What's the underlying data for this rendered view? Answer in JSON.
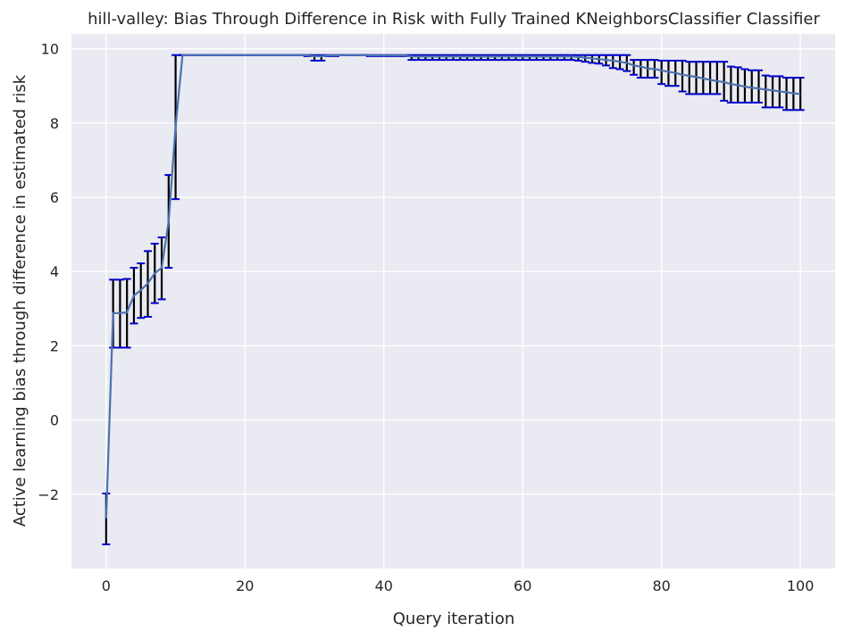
{
  "chart_data": {
    "type": "line",
    "title": "hill-valley: Bias Through Difference in Risk with Fully Trained KNeighborsClassifier Classifier",
    "xlabel": "Query iteration",
    "ylabel": "Active learning bias through difference in estimated risk",
    "xlim": [
      -5,
      105
    ],
    "ylim": [
      -4.0,
      10.4
    ],
    "xticks": [
      0,
      20,
      40,
      60,
      80,
      100
    ],
    "yticks": [
      -2,
      0,
      2,
      4,
      6,
      8,
      10
    ],
    "xtick_labels": [
      "0",
      "20",
      "40",
      "60",
      "80",
      "100"
    ],
    "ytick_labels": [
      "−2",
      "0",
      "2",
      "4",
      "6",
      "8",
      "10"
    ],
    "grid": true,
    "colors": {
      "background": "#eaeaf2",
      "grid": "#ffffff",
      "line": "#4c72b0",
      "errorbar": "#000000",
      "cap": "#0000cc"
    },
    "series": [
      {
        "x": [
          0,
          1,
          2,
          3,
          4,
          5,
          6,
          7,
          8,
          9,
          10,
          11,
          12,
          13,
          14,
          15,
          16,
          17,
          18,
          19,
          20,
          21,
          22,
          23,
          24,
          25,
          26,
          27,
          28,
          29,
          30,
          31,
          32,
          33,
          34,
          35,
          36,
          37,
          38,
          39,
          40,
          41,
          42,
          43,
          44,
          45,
          46,
          47,
          48,
          49,
          50,
          51,
          52,
          53,
          54,
          55,
          56,
          57,
          58,
          59,
          60,
          61,
          62,
          63,
          64,
          65,
          66,
          67,
          68,
          69,
          70,
          71,
          72,
          73,
          74,
          75,
          76,
          77,
          78,
          79,
          80,
          81,
          82,
          83,
          84,
          85,
          86,
          87,
          88,
          89,
          90,
          91,
          92,
          93,
          94,
          95,
          96,
          97,
          98,
          99,
          100
        ],
        "y": [
          -2.65,
          2.88,
          2.88,
          2.9,
          3.35,
          3.5,
          3.68,
          3.95,
          4.1,
          5.35,
          7.9,
          9.83,
          9.83,
          9.83,
          9.83,
          9.83,
          9.83,
          9.83,
          9.83,
          9.83,
          9.83,
          9.83,
          9.83,
          9.83,
          9.83,
          9.83,
          9.83,
          9.83,
          9.83,
          9.82,
          9.8,
          9.8,
          9.82,
          9.82,
          9.83,
          9.83,
          9.83,
          9.83,
          9.82,
          9.82,
          9.82,
          9.82,
          9.82,
          9.82,
          9.79,
          9.79,
          9.79,
          9.79,
          9.79,
          9.79,
          9.79,
          9.79,
          9.79,
          9.79,
          9.79,
          9.79,
          9.79,
          9.79,
          9.79,
          9.79,
          9.79,
          9.79,
          9.79,
          9.79,
          9.79,
          9.79,
          9.79,
          9.79,
          9.78,
          9.76,
          9.74,
          9.72,
          9.7,
          9.68,
          9.65,
          9.62,
          9.55,
          9.52,
          9.47,
          9.45,
          9.42,
          9.38,
          9.35,
          9.3,
          9.27,
          9.24,
          9.2,
          9.16,
          9.13,
          9.1,
          9.05,
          9.02,
          8.98,
          8.95,
          8.93,
          8.9,
          8.88,
          8.85,
          8.83,
          8.8,
          8.78
        ],
        "err_low": [
          -3.35,
          1.95,
          1.95,
          1.95,
          2.6,
          2.75,
          2.78,
          3.15,
          3.25,
          4.1,
          5.95,
          9.83,
          9.83,
          9.83,
          9.83,
          9.83,
          9.83,
          9.83,
          9.83,
          9.83,
          9.83,
          9.83,
          9.83,
          9.83,
          9.83,
          9.83,
          9.83,
          9.83,
          9.83,
          9.8,
          9.68,
          9.68,
          9.8,
          9.8,
          9.83,
          9.83,
          9.83,
          9.83,
          9.8,
          9.8,
          9.8,
          9.8,
          9.8,
          9.8,
          9.7,
          9.7,
          9.7,
          9.7,
          9.7,
          9.7,
          9.7,
          9.7,
          9.7,
          9.7,
          9.7,
          9.7,
          9.7,
          9.7,
          9.7,
          9.7,
          9.7,
          9.7,
          9.7,
          9.7,
          9.7,
          9.7,
          9.7,
          9.7,
          9.68,
          9.65,
          9.62,
          9.6,
          9.55,
          9.48,
          9.45,
          9.4,
          9.3,
          9.22,
          9.22,
          9.22,
          9.05,
          9.0,
          9.0,
          8.85,
          8.78,
          8.78,
          8.78,
          8.78,
          8.78,
          8.6,
          8.55,
          8.55,
          8.55,
          8.55,
          8.55,
          8.42,
          8.42,
          8.42,
          8.35,
          8.35,
          8.35
        ],
        "err_high": [
          -1.98,
          3.78,
          3.78,
          3.8,
          4.1,
          4.22,
          4.55,
          4.75,
          4.92,
          6.6,
          9.83,
          9.83,
          9.83,
          9.83,
          9.83,
          9.83,
          9.83,
          9.83,
          9.83,
          9.83,
          9.83,
          9.83,
          9.83,
          9.83,
          9.83,
          9.83,
          9.83,
          9.83,
          9.83,
          9.83,
          9.83,
          9.83,
          9.83,
          9.83,
          9.83,
          9.83,
          9.83,
          9.83,
          9.83,
          9.83,
          9.83,
          9.83,
          9.83,
          9.83,
          9.83,
          9.83,
          9.83,
          9.83,
          9.83,
          9.83,
          9.83,
          9.83,
          9.83,
          9.83,
          9.83,
          9.83,
          9.83,
          9.83,
          9.83,
          9.83,
          9.83,
          9.83,
          9.83,
          9.83,
          9.83,
          9.83,
          9.83,
          9.83,
          9.83,
          9.83,
          9.83,
          9.83,
          9.83,
          9.83,
          9.83,
          9.83,
          9.7,
          9.7,
          9.7,
          9.7,
          9.68,
          9.68,
          9.68,
          9.68,
          9.65,
          9.65,
          9.65,
          9.65,
          9.65,
          9.65,
          9.52,
          9.5,
          9.45,
          9.42,
          9.42,
          9.28,
          9.26,
          9.26,
          9.22,
          9.22,
          9.22
        ]
      }
    ]
  }
}
